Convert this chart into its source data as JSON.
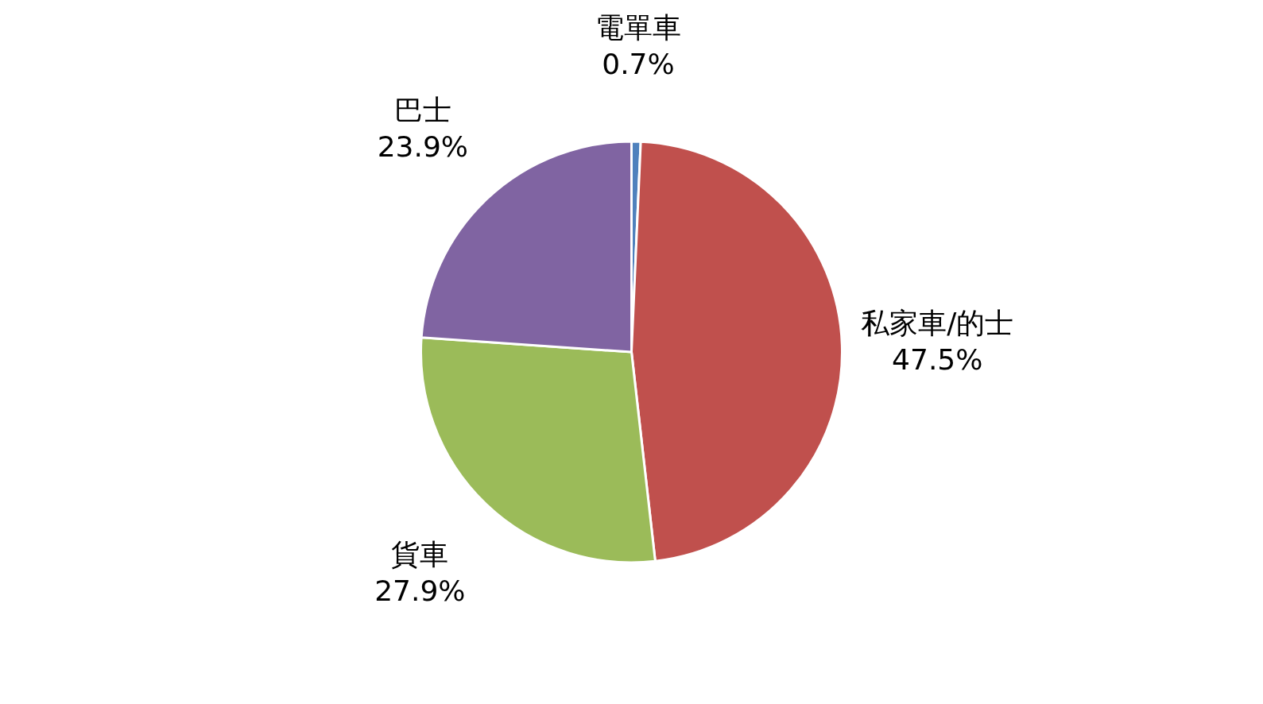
{
  "chart_data": {
    "type": "pie",
    "categories": [
      "電單車",
      "私家車/的士",
      "貨車",
      "巴士"
    ],
    "values": [
      0.7,
      47.5,
      27.9,
      23.9
    ],
    "colors": [
      "#4f81bd",
      "#c0504d",
      "#9bbb59",
      "#8064a2"
    ],
    "value_labels": [
      "0.7%",
      "47.5%",
      "27.9%",
      "23.9%"
    ]
  }
}
